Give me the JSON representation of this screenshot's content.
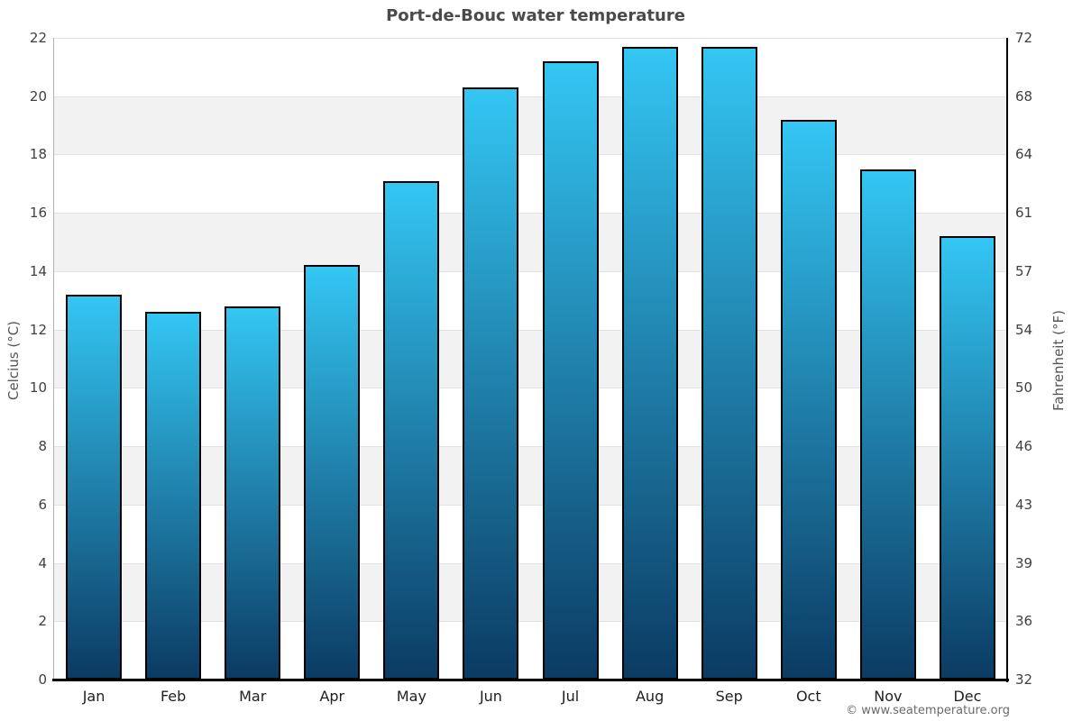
{
  "title": "Port-de-Bouc water temperature",
  "attribution": "© www.seatemperature.org",
  "chart_data": {
    "type": "bar",
    "title": "Port-de-Bouc water temperature",
    "categories": [
      "Jan",
      "Feb",
      "Mar",
      "Apr",
      "May",
      "Jun",
      "Jul",
      "Aug",
      "Sep",
      "Oct",
      "Nov",
      "Dec"
    ],
    "series": [
      {
        "name": "Water temperature",
        "unit": "°C",
        "values": [
          13.2,
          12.6,
          12.8,
          14.2,
          17.1,
          20.3,
          21.2,
          21.7,
          21.7,
          19.2,
          17.5,
          15.2
        ]
      }
    ],
    "ylabel_left": "Celcius (°C)",
    "ylabel_right": "Fahrenheit (°F)",
    "ylim": [
      0,
      22
    ],
    "ytick_step": 2,
    "yticks_celsius": [
      0,
      2,
      4,
      6,
      8,
      10,
      12,
      14,
      16,
      18,
      20,
      22
    ],
    "yticks_fahrenheit_labels": [
      "32",
      "36",
      "39",
      "43",
      "46",
      "50",
      "54",
      "57",
      "61",
      "64",
      "68",
      "72"
    ],
    "grid": "horizontal gridlines with alternating shaded bands",
    "legend": "none",
    "colors": {
      "bar_gradient_top": "#34c6f3",
      "bar_gradient_bottom": "#0b3b63",
      "bar_border": "#000000",
      "band_shaded": "#f2f2f2",
      "band_plain": "#ffffff",
      "gridline": "#e2e2e2",
      "axis_left_line": "#b3b3b3",
      "axis_right_line": "#000000",
      "axis_bottom_line": "#000000",
      "title_text": "#4a4a4a",
      "tick_text": "#404040",
      "month_text": "#1f1f1f",
      "attribution_text": "#6b6b6b"
    }
  }
}
